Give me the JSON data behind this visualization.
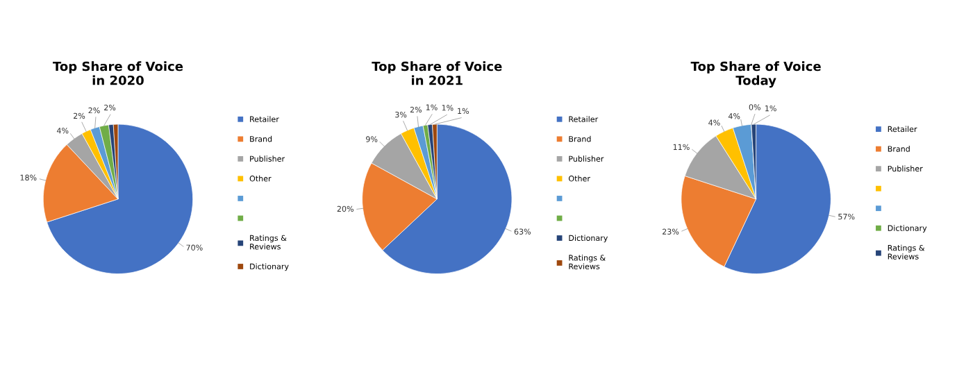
{
  "chart_data": [
    {
      "type": "pie",
      "title": "Top Share of Voice\nin 2020",
      "legend": "right",
      "categories": [
        "Retailer",
        "Brand",
        "Publisher",
        "Other",
        null,
        null,
        "Ratings &\nReviews",
        "Dictionary"
      ],
      "values": [
        70,
        18,
        4,
        2,
        2,
        2,
        1,
        1
      ],
      "value_labels": [
        "70%",
        "18%",
        "4%",
        "2%",
        "2%",
        "2%",
        null,
        null
      ],
      "colors": [
        "#4472c4",
        "#ed7d31",
        "#a5a5a5",
        "#ffc000",
        "#5b9bd5",
        "#70ad47",
        "#264478",
        "#9e480e"
      ]
    },
    {
      "type": "pie",
      "title": "Top Share of Voice\nin 2021",
      "legend": "right",
      "categories": [
        "Retailer",
        "Brand",
        "Publisher",
        "Other",
        null,
        null,
        "Dictionary",
        "Ratings &\nReviews"
      ],
      "values": [
        63,
        20,
        9,
        3,
        2,
        1,
        1,
        1
      ],
      "value_labels": [
        "63%",
        "20%",
        "9%",
        "3%",
        "2%",
        "1%",
        "1%",
        "1%"
      ],
      "colors": [
        "#4472c4",
        "#ed7d31",
        "#a5a5a5",
        "#ffc000",
        "#5b9bd5",
        "#70ad47",
        "#264478",
        "#9e480e"
      ]
    },
    {
      "type": "pie",
      "title": "Top Share of Voice\nToday",
      "legend": "right",
      "categories": [
        "Retailer",
        "Brand",
        "Publisher",
        null,
        null,
        "Dictionary",
        "Ratings &\nReviews"
      ],
      "values": [
        57,
        23,
        11,
        4,
        4,
        0,
        1
      ],
      "value_labels": [
        "57%",
        "23%",
        "11%",
        "4%",
        "4%",
        "0%",
        "1%"
      ],
      "colors": [
        "#4472c4",
        "#ed7d31",
        "#a5a5a5",
        "#ffc000",
        "#5b9bd5",
        "#70ad47",
        "#264478"
      ]
    }
  ]
}
